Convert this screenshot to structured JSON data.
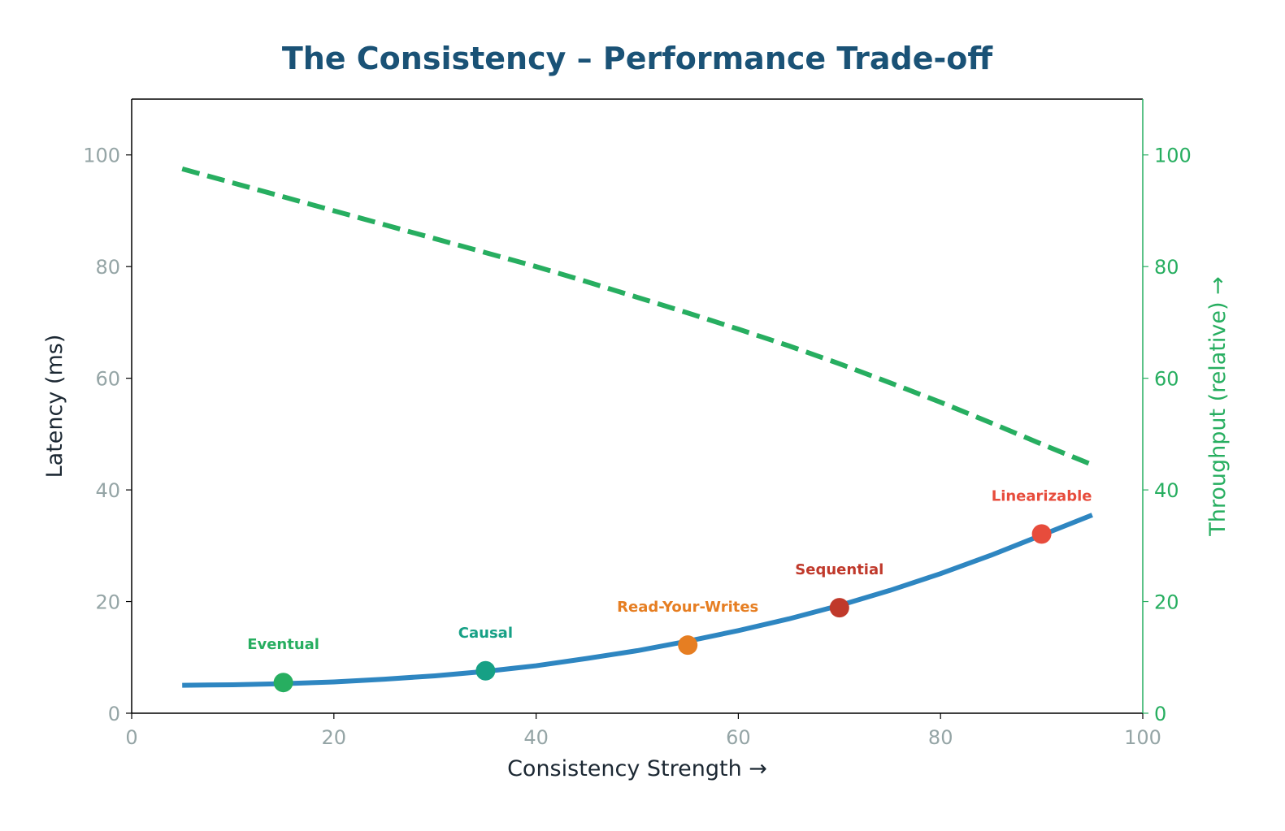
{
  "chart_data": {
    "type": "line",
    "title": "The Consistency – Performance Trade-off",
    "xlabel": "Consistency Strength →",
    "ylabel": "Latency (ms)",
    "y2label": "Throughput (relative) →",
    "xlim": [
      0,
      100
    ],
    "ylim": [
      0,
      110
    ],
    "y2lim": [
      0,
      110
    ],
    "xticks": [
      "0",
      "20",
      "40",
      "60",
      "80",
      "100"
    ],
    "yticks": [
      "0",
      "20",
      "40",
      "60",
      "80",
      "100"
    ],
    "y2ticks": [
      "0",
      "20",
      "40",
      "60",
      "80",
      "100"
    ],
    "grid": false,
    "x": [
      5,
      10,
      15,
      20,
      25,
      30,
      35,
      40,
      45,
      50,
      55,
      60,
      65,
      70,
      75,
      80,
      85,
      90,
      95
    ],
    "series": [
      {
        "axis": "left",
        "style": "solid",
        "color": "#2e86c1",
        "values": [
          5.0,
          5.1,
          5.3,
          5.6,
          6.1,
          6.7,
          7.5,
          8.5,
          9.8,
          11.2,
          12.9,
          14.8,
          16.9,
          19.3,
          22.0,
          25.0,
          28.3,
          31.9,
          35.5
        ]
      },
      {
        "axis": "right",
        "style": "dashed",
        "color": "#27ae60",
        "values": [
          97.5,
          95,
          92.5,
          90,
          87.5,
          85,
          82.5,
          80,
          77.3,
          74.5,
          71.7,
          68.8,
          65.8,
          62.6,
          59.2,
          55.7,
          52,
          48.2,
          44.5
        ]
      }
    ],
    "points": [
      {
        "label": "Eventual",
        "x": 15,
        "y": 5.5,
        "color": "#27ae60"
      },
      {
        "label": "Causal",
        "x": 35,
        "y": 7.6,
        "color": "#16a085"
      },
      {
        "label": "Read-Your-Writes",
        "x": 55,
        "y": 12.2,
        "color": "#e67e22"
      },
      {
        "label": "Sequential",
        "x": 70,
        "y": 18.9,
        "color": "#c0392b"
      },
      {
        "label": "Linearizable",
        "x": 90,
        "y": 32.1,
        "color": "#e74c3c"
      }
    ],
    "colors": {
      "title": "#1a5276",
      "left_ticks": "#95a5a6",
      "right_axis": "#27ae60",
      "axis_label": "#1c2833"
    }
  }
}
